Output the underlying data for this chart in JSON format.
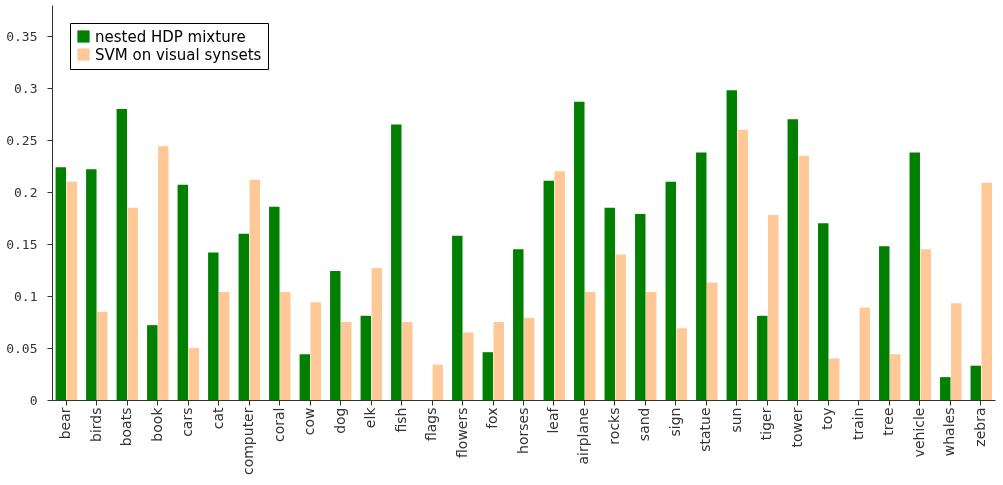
{
  "chart_data": {
    "type": "bar",
    "categories": [
      "bear",
      "birds",
      "boats",
      "book",
      "cars",
      "cat",
      "computer",
      "coral",
      "cow",
      "dog",
      "elk",
      "fish",
      "flags",
      "flowers",
      "fox",
      "horses",
      "leaf",
      "airplane",
      "rocks",
      "sand",
      "sign",
      "statue",
      "sun",
      "tiger",
      "tower",
      "toy",
      "train",
      "tree",
      "vehicle",
      "whales",
      "zebra"
    ],
    "series": [
      {
        "name": "nested HDP mixture",
        "color": "#007f00",
        "values": [
          0.224,
          0.222,
          0.28,
          0.072,
          0.207,
          0.142,
          0.16,
          0.186,
          0.044,
          0.124,
          0.081,
          0.265,
          0,
          0.158,
          0.046,
          0.145,
          0.211,
          0.287,
          0.185,
          0.179,
          0.21,
          0.238,
          0.298,
          0.081,
          0.27,
          0.17,
          0,
          0.148,
          0.238,
          0.022,
          0.033
        ]
      },
      {
        "name": "SVM on visual synsets",
        "color": "#ffc896",
        "values": [
          0.21,
          0.085,
          0.185,
          0.244,
          0.05,
          0.104,
          0.212,
          0.104,
          0.094,
          0.075,
          0.127,
          0.075,
          0.034,
          0.065,
          0.075,
          0.079,
          0.22,
          0.104,
          0.14,
          0.104,
          0.069,
          0.113,
          0.26,
          0.178,
          0.235,
          0.04,
          0.089,
          0.044,
          0.145,
          0.093,
          0.209
        ]
      }
    ],
    "ylim": [
      0,
      0.38
    ],
    "yticks": [
      0,
      0.05,
      0.1,
      0.15,
      0.2,
      0.25,
      0.3,
      0.35
    ],
    "grid": false,
    "legend": "top left"
  }
}
